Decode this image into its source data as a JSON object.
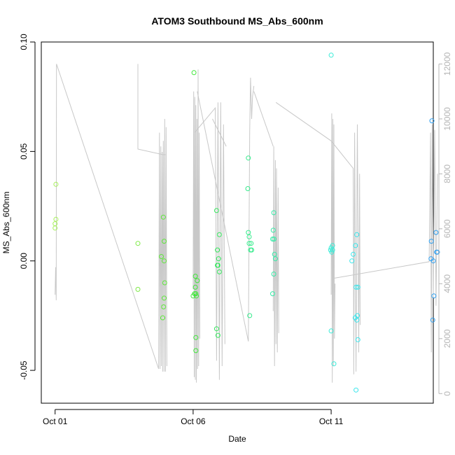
{
  "chart_data": {
    "type": "scatter",
    "title": "ATOM3 Southbound MS_Abs_600nm",
    "xlabel": "Date",
    "ylabel": "MS_Abs_600nm",
    "x_range": [
      -0.5,
      13.7
    ],
    "ylim": [
      -0.065,
      0.1
    ],
    "x_ticks": [
      {
        "value": 0,
        "label": "Oct 01"
      },
      {
        "value": 5,
        "label": "Oct 06"
      },
      {
        "value": 10,
        "label": "Oct 11"
      }
    ],
    "y_ticks": [
      {
        "value": -0.05,
        "label": "-0.05"
      },
      {
        "value": 0,
        "label": "0.00"
      },
      {
        "value": 0.05,
        "label": "0.05"
      },
      {
        "value": 0.1,
        "label": "0.10"
      }
    ],
    "y2_range": [
      -350,
      12800
    ],
    "y2_ticks": [
      0,
      2000,
      4000,
      6000,
      8000,
      10000,
      12000
    ],
    "y2_color": "#b5b5b5",
    "grid": false,
    "legend": "none",
    "point_style": "open-circle",
    "points": [
      {
        "x": 0.03,
        "y": 0.035,
        "color": "#a6f05a"
      },
      {
        "x": 0.03,
        "y": 0.019,
        "color": "#a6f05a"
      },
      {
        "x": 0.0,
        "y": 0.017,
        "color": "#a6f05a"
      },
      {
        "x": 0.0,
        "y": 0.015,
        "color": "#a6f05a"
      },
      {
        "x": 3.0,
        "y": 0.008,
        "color": "#7eea46"
      },
      {
        "x": 3.0,
        "y": -0.013,
        "color": "#7eea46"
      },
      {
        "x": 3.85,
        "y": 0.002,
        "color": "#5ee83a"
      },
      {
        "x": 3.92,
        "y": 0.02,
        "color": "#5ee83a"
      },
      {
        "x": 3.95,
        "y": 0.009,
        "color": "#5ee83a"
      },
      {
        "x": 3.95,
        "y": 0.0,
        "color": "#5ee83a"
      },
      {
        "x": 3.97,
        "y": -0.01,
        "color": "#5ee83a"
      },
      {
        "x": 3.95,
        "y": -0.017,
        "color": "#5ee83a"
      },
      {
        "x": 3.93,
        "y": -0.021,
        "color": "#5ee83a"
      },
      {
        "x": 3.9,
        "y": -0.026,
        "color": "#5ee83a"
      },
      {
        "x": 5.03,
        "y": 0.086,
        "color": "#3ee638"
      },
      {
        "x": 5.08,
        "y": -0.007,
        "color": "#3ee638"
      },
      {
        "x": 5.15,
        "y": -0.009,
        "color": "#3ee638"
      },
      {
        "x": 5.08,
        "y": -0.012,
        "color": "#3ee638"
      },
      {
        "x": 5.05,
        "y": -0.015,
        "color": "#3ee638"
      },
      {
        "x": 5.0,
        "y": -0.016,
        "color": "#3ee638"
      },
      {
        "x": 5.12,
        "y": -0.016,
        "color": "#3ee638"
      },
      {
        "x": 5.1,
        "y": -0.015,
        "color": "#3ee638"
      },
      {
        "x": 5.1,
        "y": -0.035,
        "color": "#3ee638"
      },
      {
        "x": 5.1,
        "y": -0.041,
        "color": "#3ee638"
      },
      {
        "x": 5.85,
        "y": 0.023,
        "color": "#33e85c"
      },
      {
        "x": 5.95,
        "y": 0.012,
        "color": "#33e85c"
      },
      {
        "x": 5.88,
        "y": 0.005,
        "color": "#33e85c"
      },
      {
        "x": 5.92,
        "y": 0.001,
        "color": "#33e85c"
      },
      {
        "x": 5.9,
        "y": -0.002,
        "color": "#33e85c"
      },
      {
        "x": 5.88,
        "y": -0.002,
        "color": "#33e85c"
      },
      {
        "x": 5.95,
        "y": -0.005,
        "color": "#33e85c"
      },
      {
        "x": 5.85,
        "y": -0.031,
        "color": "#33e85c"
      },
      {
        "x": 5.9,
        "y": -0.034,
        "color": "#33e85c"
      },
      {
        "x": 7.0,
        "y": 0.047,
        "color": "#36eb8c"
      },
      {
        "x": 6.98,
        "y": 0.033,
        "color": "#36eb8c"
      },
      {
        "x": 7.0,
        "y": 0.013,
        "color": "#36eb8c"
      },
      {
        "x": 7.03,
        "y": 0.011,
        "color": "#36eb8c"
      },
      {
        "x": 7.03,
        "y": 0.008,
        "color": "#36eb8c"
      },
      {
        "x": 7.1,
        "y": 0.008,
        "color": "#36eb8c"
      },
      {
        "x": 7.08,
        "y": 0.005,
        "color": "#36eb8c"
      },
      {
        "x": 7.12,
        "y": 0.005,
        "color": "#36eb8c"
      },
      {
        "x": 7.05,
        "y": -0.025,
        "color": "#36eb8c"
      },
      {
        "x": 7.92,
        "y": 0.022,
        "color": "#38eba8"
      },
      {
        "x": 7.9,
        "y": 0.014,
        "color": "#38eba8"
      },
      {
        "x": 7.88,
        "y": 0.01,
        "color": "#38eba8"
      },
      {
        "x": 7.93,
        "y": 0.01,
        "color": "#38eba8"
      },
      {
        "x": 7.95,
        "y": 0.003,
        "color": "#38eba8"
      },
      {
        "x": 7.98,
        "y": 0.001,
        "color": "#38eba8"
      },
      {
        "x": 7.92,
        "y": -0.006,
        "color": "#38eba8"
      },
      {
        "x": 7.88,
        "y": -0.015,
        "color": "#38eba8"
      },
      {
        "x": 10.0,
        "y": 0.094,
        "color": "#38ecd8"
      },
      {
        "x": 10.05,
        "y": 0.007,
        "color": "#38ecd8"
      },
      {
        "x": 10.0,
        "y": 0.006,
        "color": "#38ecd8"
      },
      {
        "x": 9.98,
        "y": 0.005,
        "color": "#38ecd8"
      },
      {
        "x": 10.05,
        "y": 0.005,
        "color": "#38ecd8"
      },
      {
        "x": 10.02,
        "y": 0.004,
        "color": "#38ecd8"
      },
      {
        "x": 10.0,
        "y": -0.032,
        "color": "#38ecd8"
      },
      {
        "x": 10.1,
        "y": -0.047,
        "color": "#38ecd8"
      },
      {
        "x": 10.93,
        "y": 0.012,
        "color": "#38e6ec"
      },
      {
        "x": 10.88,
        "y": 0.007,
        "color": "#38e6ec"
      },
      {
        "x": 10.8,
        "y": 0.003,
        "color": "#38e6ec"
      },
      {
        "x": 10.75,
        "y": 0.0,
        "color": "#38e6ec"
      },
      {
        "x": 10.9,
        "y": -0.012,
        "color": "#38e6ec"
      },
      {
        "x": 10.97,
        "y": -0.012,
        "color": "#38e6ec"
      },
      {
        "x": 10.95,
        "y": -0.025,
        "color": "#38e6ec"
      },
      {
        "x": 10.87,
        "y": -0.026,
        "color": "#38e6ec"
      },
      {
        "x": 10.93,
        "y": -0.027,
        "color": "#38e6ec"
      },
      {
        "x": 10.97,
        "y": -0.036,
        "color": "#38e6ec"
      },
      {
        "x": 10.9,
        "y": -0.059,
        "color": "#38e6ec"
      },
      {
        "x": 13.65,
        "y": 0.064,
        "color": "#2f9ff0"
      },
      {
        "x": 13.8,
        "y": 0.013,
        "color": "#2f9ff0"
      },
      {
        "x": 13.63,
        "y": 0.009,
        "color": "#2f9ff0"
      },
      {
        "x": 13.82,
        "y": 0.004,
        "color": "#2f9ff0"
      },
      {
        "x": 13.85,
        "y": 0.004,
        "color": "#2f9ff0"
      },
      {
        "x": 13.62,
        "y": 0.001,
        "color": "#2f9ff0"
      },
      {
        "x": 13.7,
        "y": 0.0,
        "color": "#2f9ff0"
      },
      {
        "x": 13.72,
        "y": -0.016,
        "color": "#2f9ff0"
      },
      {
        "x": 13.68,
        "y": -0.027,
        "color": "#2f9ff0"
      }
    ],
    "secondary_series": {
      "type": "line",
      "color": "#c8c8c8",
      "points": [
        [
          0.0,
          3600
        ],
        [
          0.02,
          4500
        ],
        [
          0.03,
          3900
        ],
        [
          0.05,
          12000
        ],
        [
          3.73,
          900
        ],
        [
          3.75,
          1400
        ],
        [
          3.0,
          12000
        ],
        [
          3.0,
          10000
        ],
        [
          3.0,
          9900
        ],
        [
          3.0,
          10000
        ],
        [
          3.0,
          12000
        ],
        [
          3.0,
          12000
        ],
        [
          3.0,
          10000
        ],
        [
          3.0,
          9900
        ],
        [
          3.0,
          10000
        ],
        [
          3.0,
          12000
        ]
      ]
    }
  }
}
